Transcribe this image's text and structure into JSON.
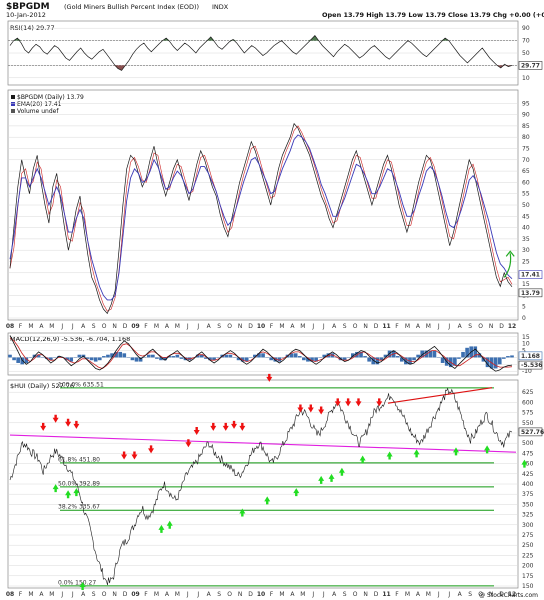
{
  "header": {
    "symbol": "$BPGDM",
    "name": "(Gold Miners Bullish Percent Index (EOD))",
    "exchange": "INDX",
    "date": "10-Jan-2012",
    "quote": "Open 13.79  High 13.79  Low 13.79  Close 13.79  Chg +0.00 (+0.00%)",
    "watermark": "@ StockCharts.com"
  },
  "colors": {
    "rsi_overbought_fill": "#4f7a4f",
    "rsi_oversold_fill": "#8a5050",
    "price_line": "#1a1a1a",
    "ema_line": "#3a3ab8",
    "close_line": "#cc2222",
    "macd_line": "#111111",
    "signal_line": "#cc2222",
    "histogram": "#3c6fb0",
    "support_line": "#119911",
    "trend_magenta": "#e020e0",
    "trend_red": "#dd1111",
    "arrow_up": "#22dd22",
    "arrow_down": "#ee1111"
  },
  "chart_data": [
    {
      "type": "line",
      "panel": "rsi",
      "title": "RSI(14) 29.77",
      "ylim": [
        0,
        100
      ],
      "ticks_right": [
        "90",
        "70",
        "50",
        "30",
        "10"
      ],
      "value_label": "29.77",
      "overbought": 70,
      "oversold": 30,
      "values": [
        62,
        70,
        74,
        66,
        55,
        50,
        58,
        64,
        60,
        52,
        48,
        55,
        62,
        58,
        50,
        42,
        38,
        45,
        52,
        58,
        50,
        44,
        40,
        46,
        52,
        56,
        48,
        40,
        32,
        25,
        22,
        30,
        38,
        48,
        56,
        62,
        66,
        58,
        52,
        58,
        64,
        70,
        74,
        68,
        60,
        54,
        60,
        66,
        62,
        56,
        50,
        58,
        64,
        70,
        76,
        68,
        60,
        56,
        62,
        68,
        72,
        66,
        58,
        50,
        56,
        62,
        58,
        52,
        46,
        50,
        56,
        62,
        66,
        70,
        64,
        58,
        52,
        48,
        54,
        60,
        66,
        72,
        78,
        70,
        62,
        56,
        50,
        44,
        52,
        58,
        64,
        60,
        54,
        48,
        42,
        46,
        52,
        58,
        62,
        56,
        50,
        44,
        40,
        46,
        52,
        58,
        64,
        70,
        66,
        60,
        54,
        48,
        44,
        50,
        56,
        62,
        68,
        74,
        70,
        62,
        54,
        46,
        40,
        34,
        40,
        46,
        52,
        58,
        50,
        42,
        36,
        30,
        26,
        32,
        28,
        30
      ]
    },
    {
      "type": "line",
      "panel": "bpi",
      "legend": [
        "$BPGDM (Daily) 13.79",
        "EMA(20) 17.41",
        "Volume undef"
      ],
      "ylim": [
        0,
        100
      ],
      "ticks_right": [
        "95",
        "90",
        "85",
        "80",
        "75",
        "70",
        "65",
        "60",
        "55",
        "50",
        "45",
        "40",
        "35",
        "30",
        "25",
        "20",
        "15",
        "10",
        "5",
        "0"
      ],
      "value_labels": [
        "17.41",
        "13.79"
      ],
      "series": [
        {
          "name": "$BPGDM (Daily) 13.79",
          "values": [
            22,
            40,
            58,
            70,
            62,
            55,
            66,
            72,
            60,
            50,
            42,
            58,
            64,
            52,
            40,
            30,
            38,
            48,
            54,
            40,
            28,
            18,
            14,
            8,
            4,
            2,
            6,
            12,
            30,
            50,
            66,
            72,
            70,
            64,
            58,
            62,
            70,
            76,
            68,
            60,
            54,
            60,
            66,
            70,
            64,
            58,
            52,
            60,
            68,
            74,
            70,
            64,
            58,
            54,
            46,
            40,
            36,
            44,
            52,
            60,
            66,
            72,
            78,
            74,
            68,
            62,
            56,
            50,
            58,
            66,
            72,
            76,
            80,
            86,
            84,
            80,
            76,
            72,
            66,
            60,
            54,
            50,
            44,
            40,
            46,
            52,
            58,
            64,
            70,
            74,
            68,
            62,
            56,
            50,
            56,
            62,
            68,
            72,
            66,
            58,
            50,
            44,
            38,
            44,
            52,
            60,
            66,
            72,
            70,
            64,
            56,
            48,
            40,
            32,
            38,
            46,
            54,
            62,
            70,
            66,
            58,
            50,
            42,
            34,
            26,
            18,
            14,
            20,
            16,
            13.79
          ]
        },
        {
          "name": "EMA(20) 17.41",
          "values": [
            26,
            36,
            50,
            62,
            62,
            58,
            62,
            66,
            62,
            56,
            50,
            54,
            58,
            54,
            46,
            38,
            38,
            44,
            48,
            44,
            34,
            26,
            20,
            14,
            10,
            8,
            8,
            10,
            20,
            36,
            52,
            62,
            66,
            64,
            60,
            61,
            65,
            70,
            67,
            62,
            57,
            58,
            62,
            65,
            63,
            59,
            55,
            57,
            62,
            67,
            67,
            64,
            60,
            56,
            50,
            45,
            41,
            43,
            48,
            54,
            60,
            65,
            70,
            71,
            68,
            64,
            60,
            55,
            56,
            61,
            66,
            70,
            74,
            79,
            81,
            80,
            78,
            75,
            70,
            65,
            59,
            55,
            50,
            45,
            45,
            49,
            53,
            58,
            63,
            68,
            67,
            64,
            60,
            55,
            55,
            58,
            62,
            66,
            65,
            61,
            56,
            50,
            45,
            45,
            48,
            54,
            59,
            65,
            67,
            65,
            60,
            54,
            47,
            41,
            40,
            43,
            48,
            54,
            61,
            63,
            60,
            55,
            49,
            43,
            36,
            29,
            24,
            22,
            19,
            17.41
          ]
        }
      ]
    },
    {
      "type": "line",
      "panel": "macd",
      "title": "MACD(12,26,9) -5.536, -6.704, 1.168",
      "ylim": [
        -12,
        17
      ],
      "ticks_right": [
        "15",
        "10",
        "5",
        "0",
        "-5",
        "-10"
      ],
      "value_labels": [
        "1.168",
        "-5.536"
      ],
      "series": [
        {
          "name": "MACD",
          "values": [
            16,
            10,
            4,
            -2,
            -5,
            -3,
            1,
            4,
            2,
            -1,
            -4,
            -2,
            1,
            0,
            -3,
            -6,
            -4,
            -1,
            1,
            -2,
            -5,
            -8,
            -9,
            -7,
            -4,
            0,
            5,
            9,
            12,
            10,
            6,
            2,
            -1,
            1,
            4,
            6,
            3,
            0,
            -2,
            1,
            3,
            5,
            2,
            -1,
            -3,
            -1,
            2,
            4,
            1,
            -2,
            -4,
            -2,
            1,
            3,
            5,
            3,
            0,
            -3,
            -5,
            -3,
            0,
            3,
            6,
            4,
            1,
            -2,
            -4,
            -2,
            1,
            4,
            6,
            5,
            2,
            -1,
            -3,
            -5,
            -3,
            0,
            2,
            4,
            2,
            -1,
            -3,
            -2,
            1,
            3,
            5,
            4,
            1,
            -2,
            -4,
            -3,
            0,
            3,
            5,
            3,
            0,
            -3,
            -5,
            -4,
            -1,
            2,
            4,
            6,
            8,
            5,
            1,
            -3,
            -6,
            -8,
            -5,
            -2,
            1,
            4,
            6,
            3,
            -1,
            -5,
            -8,
            -10,
            -9,
            -7,
            -6,
            -5.536
          ]
        },
        {
          "name": "Signal",
          "values": [
            14,
            12,
            8,
            3,
            -1,
            -3,
            -1,
            2,
            2,
            0,
            -2,
            -2,
            0,
            0,
            -1,
            -3,
            -4,
            -3,
            -1,
            -1,
            -3,
            -5,
            -7,
            -8,
            -6,
            -3,
            1,
            5,
            9,
            10,
            8,
            5,
            2,
            1,
            2,
            4,
            4,
            2,
            0,
            0,
            2,
            3,
            3,
            1,
            -1,
            -1,
            0,
            2,
            2,
            0,
            -2,
            -2,
            -1,
            1,
            3,
            3,
            2,
            0,
            -2,
            -3,
            -2,
            0,
            3,
            4,
            3,
            1,
            -1,
            -2,
            -1,
            1,
            3,
            4,
            4,
            2,
            0,
            -2,
            -3,
            -2,
            -1,
            1,
            2,
            1,
            -1,
            -2,
            -2,
            -1,
            1,
            3,
            4,
            3,
            1,
            -1,
            -2,
            -2,
            0,
            2,
            3,
            2,
            0,
            -2,
            -3,
            -3,
            -1,
            1,
            3,
            5,
            5,
            3,
            1,
            -2,
            -4,
            -6,
            -6,
            -4,
            -2,
            0,
            2,
            2,
            0,
            -2,
            -4,
            -6,
            -7,
            -7,
            -7,
            -6.704
          ]
        }
      ]
    },
    {
      "type": "line",
      "panel": "hui",
      "title": "$HUI (Daily) 527.76",
      "ylim": [
        150,
        650
      ],
      "ticks_right": [
        "625",
        "600",
        "575",
        "550",
        "525",
        "500",
        "475",
        "450",
        "425",
        "400",
        "375",
        "350",
        "325",
        "300",
        "275",
        "250",
        "225",
        "200",
        "175",
        "150"
      ],
      "value_label": "527.76",
      "x_tick_labels": [
        "08",
        "F",
        "M",
        "A",
        "M",
        "J",
        "J",
        "A",
        "S",
        "O",
        "N",
        "D",
        "09",
        "F",
        "M",
        "A",
        "M",
        "J",
        "J",
        "A",
        "S",
        "O",
        "N",
        "D",
        "10",
        "F",
        "M",
        "A",
        "M",
        "J",
        "J",
        "A",
        "S",
        "O",
        "N",
        "D",
        "11",
        "F",
        "M",
        "A",
        "M",
        "J",
        "J",
        "A",
        "S",
        "O",
        "N",
        "D",
        "12"
      ],
      "fib_levels": [
        {
          "label": "100.0% 635.51",
          "value": 635.51
        },
        {
          "label": "61.8% 451.80",
          "value": 451.8
        },
        {
          "label": "50.0% 392.89",
          "value": 392.89
        },
        {
          "label": "38.2% 335.67",
          "value": 335.67
        },
        {
          "label": "0.0% 150.27",
          "value": 150.27
        }
      ],
      "series": [
        {
          "name": "$HUI (Daily) 527.76",
          "values": [
            410,
            440,
            470,
            500,
            495,
            480,
            470,
            460,
            430,
            450,
            470,
            480,
            470,
            455,
            440,
            420,
            400,
            370,
            330,
            300,
            260,
            220,
            190,
            165,
            158,
            175,
            220,
            250,
            260,
            280,
            300,
            330,
            340,
            320,
            330,
            350,
            380,
            400,
            390,
            370,
            360,
            380,
            410,
            430,
            440,
            455,
            470,
            490,
            500,
            480,
            470,
            460,
            450,
            440,
            430,
            420,
            430,
            450,
            470,
            490,
            500,
            490,
            470,
            450,
            460,
            480,
            500,
            520,
            540,
            560,
            580,
            575,
            560,
            540,
            520,
            530,
            550,
            570,
            590,
            600,
            580,
            560,
            540,
            520,
            500,
            510,
            530,
            560,
            580,
            590,
            600,
            610,
            620,
            600,
            580,
            560,
            540,
            520,
            510,
            500,
            520,
            540,
            560,
            580,
            600,
            620,
            630,
            615,
            590,
            560,
            530,
            510,
            520,
            540,
            560,
            570,
            550,
            530,
            510,
            500,
            515,
            527.76
          ]
        }
      ]
    }
  ]
}
